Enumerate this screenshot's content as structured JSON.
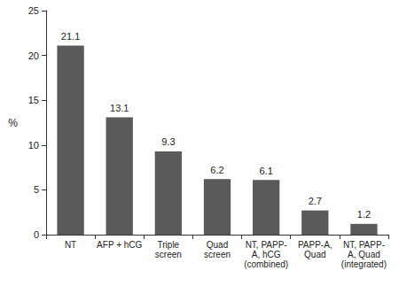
{
  "chart_data": {
    "type": "bar",
    "y_label": "%",
    "categories": [
      "NT",
      "AFP + hCG",
      "Triple\nscreen",
      "Quad\nscreen",
      "NT, PAPP-\nA, hCG\n(combined)",
      "PAPP-A,\nQuad",
      "NT, PAPP-\nA, Quad\n(integrated)"
    ],
    "values": [
      21.1,
      13.1,
      9.3,
      6.2,
      6.1,
      2.7,
      1.2
    ],
    "color": "#5a5a5a",
    "ylim": [
      0,
      25
    ],
    "yticks": [
      0,
      5,
      10,
      15,
      20,
      25
    ],
    "grid": false,
    "data_labels": true
  }
}
